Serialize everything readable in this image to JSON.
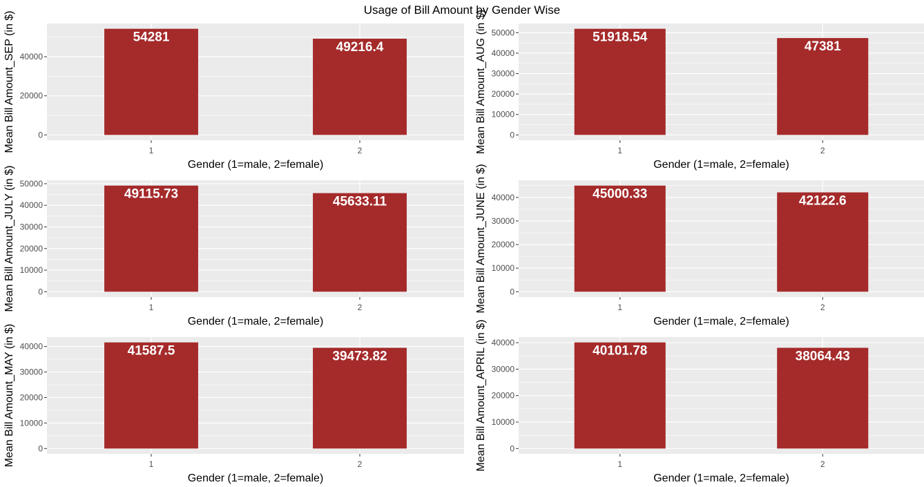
{
  "title": "Usage of Bill Amount by Gender Wise",
  "bar_color": "#a52a2a",
  "panel_background": "#ebebeb",
  "gridline_color": "#ffffff",
  "chart_data": [
    {
      "type": "bar",
      "categories": [
        "1",
        "2"
      ],
      "values": [
        54281,
        49216.4
      ],
      "labels": [
        "54281",
        "49216.4"
      ],
      "xlabel": "Gender (1=male, 2=female)",
      "ylabel": "Mean Bill Amount_SEP (in $)",
      "ylim": [
        -2714,
        56995
      ],
      "yticks": [
        0,
        20000,
        40000
      ],
      "grid": true
    },
    {
      "type": "bar",
      "categories": [
        "1",
        "2"
      ],
      "values": [
        51918.54,
        47381
      ],
      "labels": [
        "51918.54",
        "47381"
      ],
      "xlabel": "Gender (1=male, 2=female)",
      "ylabel": "Mean Bill Amount_AUG (in $)",
      "ylim": [
        -2596,
        54514
      ],
      "yticks": [
        0,
        10000,
        20000,
        30000,
        40000,
        50000
      ],
      "grid": true
    },
    {
      "type": "bar",
      "categories": [
        "1",
        "2"
      ],
      "values": [
        49115.73,
        45633.11
      ],
      "labels": [
        "49115.73",
        "45633.11"
      ],
      "xlabel": "Gender (1=male, 2=female)",
      "ylabel": "Mean Bill Amount_JULY (in $)",
      "ylim": [
        -2456,
        51572
      ],
      "yticks": [
        0,
        10000,
        20000,
        30000,
        40000,
        50000
      ],
      "grid": true
    },
    {
      "type": "bar",
      "categories": [
        "1",
        "2"
      ],
      "values": [
        45000.33,
        42122.6
      ],
      "labels": [
        "45000.33",
        "42122.6"
      ],
      "xlabel": "Gender (1=male, 2=female)",
      "ylabel": "Mean Bill Amount_JUNE (in $)",
      "ylim": [
        -2250,
        47250
      ],
      "yticks": [
        0,
        10000,
        20000,
        30000,
        40000
      ],
      "grid": true
    },
    {
      "type": "bar",
      "categories": [
        "1",
        "2"
      ],
      "values": [
        41587.5,
        39473.82
      ],
      "labels": [
        "41587.5",
        "39473.82"
      ],
      "xlabel": "Gender (1=male, 2=female)",
      "ylabel": "Mean Bill Amount_MAY (in $)",
      "ylim": [
        -2079,
        43667
      ],
      "yticks": [
        0,
        10000,
        20000,
        30000,
        40000
      ],
      "grid": true
    },
    {
      "type": "bar",
      "categories": [
        "1",
        "2"
      ],
      "values": [
        40101.78,
        38064.43
      ],
      "labels": [
        "40101.78",
        "38064.43"
      ],
      "xlabel": "Gender (1=male, 2=female)",
      "ylabel": "Mean Bill Amount_APRIL (in $)",
      "ylim": [
        -2005,
        42107
      ],
      "yticks": [
        0,
        10000,
        20000,
        30000,
        40000
      ],
      "grid": true
    }
  ]
}
